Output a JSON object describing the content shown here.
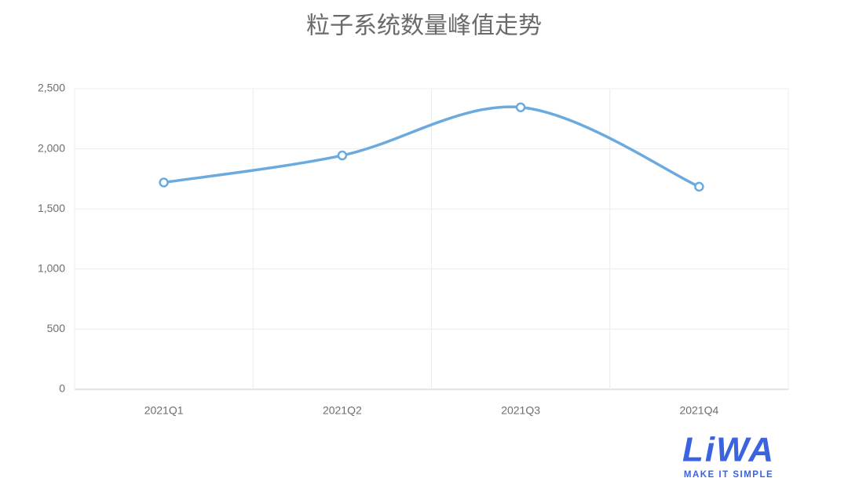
{
  "chart_data": {
    "type": "line",
    "title": "粒子系统数量峰值走势",
    "categories": [
      "2021Q1",
      "2021Q2",
      "2021Q3",
      "2021Q4"
    ],
    "values": [
      1720,
      1945,
      2345,
      1685
    ],
    "color": "#6aaade",
    "smooth": true,
    "ylim": [
      0,
      2500
    ],
    "yticks": [
      0,
      500,
      {
        "value": 1000,
        "label": "1,000"
      },
      {
        "value": 1500,
        "label": "1,500"
      },
      {
        "value": 2000,
        "label": "2,000"
      },
      {
        "value": 2500,
        "label": "2,500"
      }
    ],
    "grid": true
  },
  "watermark": {
    "logo": "LiWA",
    "tagline": "MAKE IT SIMPLE"
  }
}
